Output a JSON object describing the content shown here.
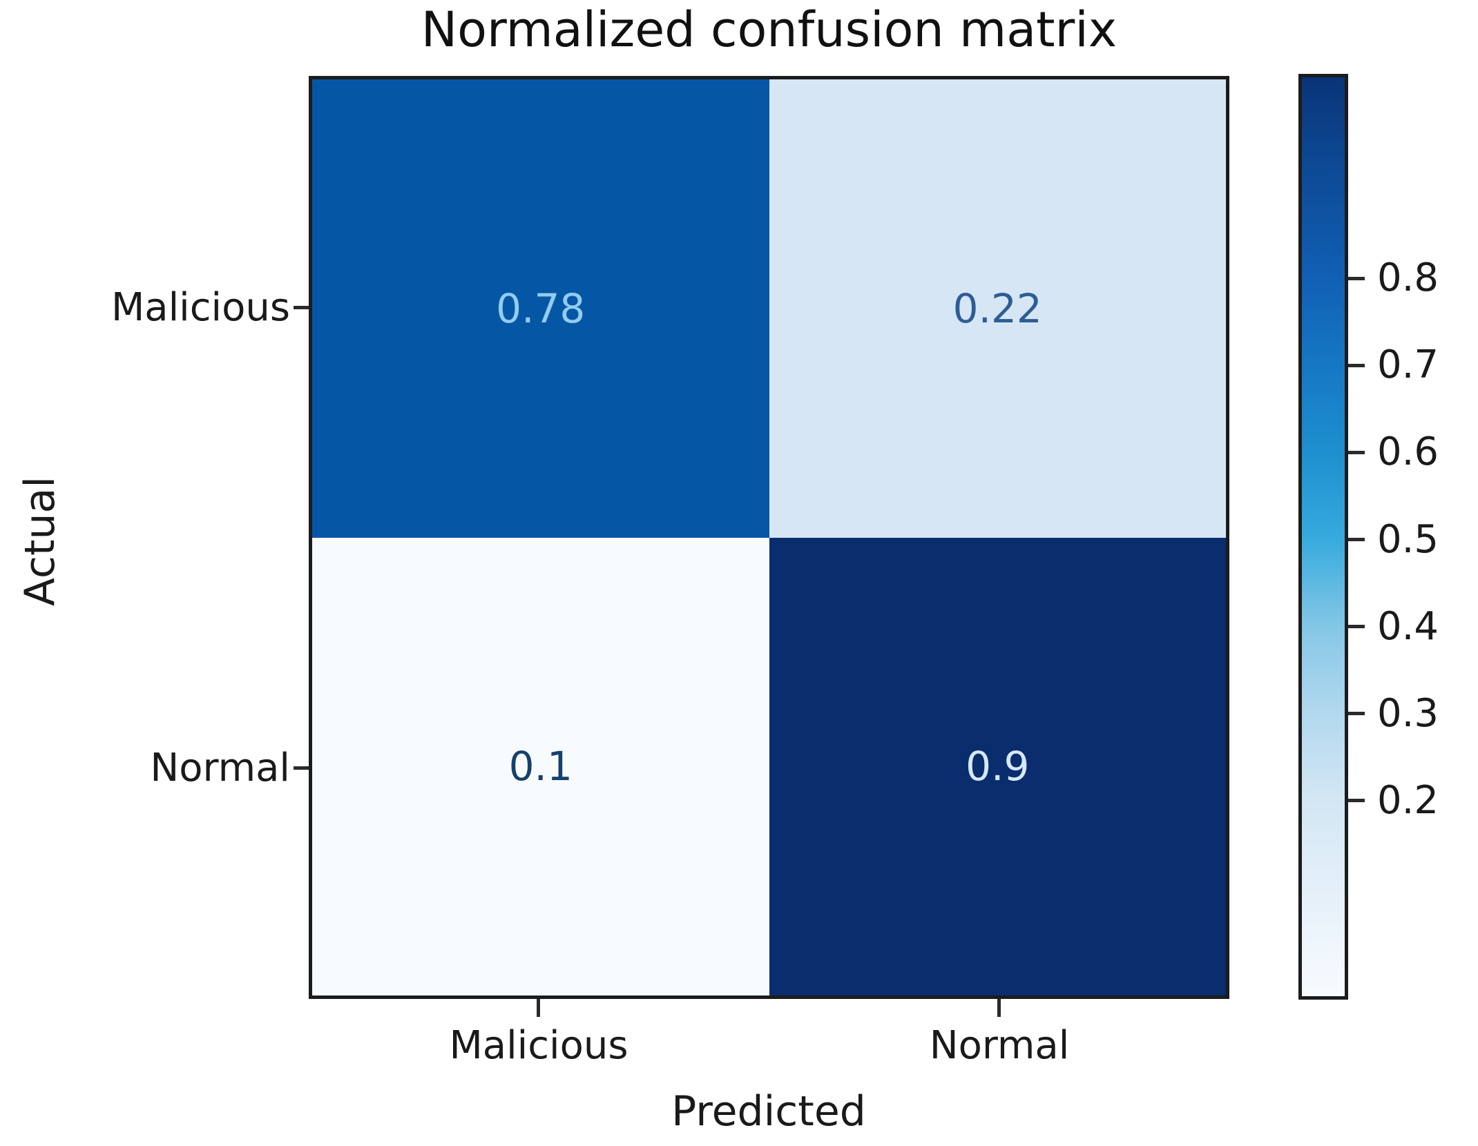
{
  "figure": {
    "background": "#ffffff"
  },
  "chart_data": {
    "type": "heatmap",
    "title": "Normalized confusion matrix",
    "xlabel": "Predicted",
    "ylabel": "Actual",
    "x_tick_labels": [
      "Malicious",
      "Normal"
    ],
    "y_tick_labels": [
      "Malicious",
      "Normal"
    ],
    "matrix": [
      [
        0.78,
        0.22
      ],
      [
        0.1,
        0.9
      ]
    ],
    "colormap": "Blues",
    "value_range": [
      0.1,
      0.9
    ],
    "grid": false,
    "cells": [
      {
        "row": "Malicious",
        "col": "Malicious",
        "value": 0.78,
        "label": "0.78",
        "bg": "#0557a6",
        "fg": "#93cdee"
      },
      {
        "row": "Malicious",
        "col": "Normal",
        "value": 0.22,
        "label": "0.22",
        "bg": "#d7e6f4",
        "fg": "#2d5d94"
      },
      {
        "row": "Normal",
        "col": "Malicious",
        "value": 0.1,
        "label": "0.1",
        "bg": "#f8fbfe",
        "fg": "#16406e"
      },
      {
        "row": "Normal",
        "col": "Normal",
        "value": 0.9,
        "label": "0.9",
        "bg": "#0a2d6d",
        "fg": "#d6e8f8"
      }
    ],
    "colorbar": {
      "position": "right",
      "ticks": [
        {
          "label": "0.8",
          "pos_pct": 22.1
        },
        {
          "label": "0.7",
          "pos_pct": 31.5
        },
        {
          "label": "0.6",
          "pos_pct": 40.9
        },
        {
          "label": "0.5",
          "pos_pct": 50.3
        },
        {
          "label": "0.4",
          "pos_pct": 59.7
        },
        {
          "label": "0.3",
          "pos_pct": 69.1
        },
        {
          "label": "0.2",
          "pos_pct": 78.5
        }
      ],
      "gradient_top_to_bottom": [
        {
          "color": "#0a3478",
          "pct": 0
        },
        {
          "color": "#0d4a95",
          "pct": 10
        },
        {
          "color": "#1160b5",
          "pct": 22
        },
        {
          "color": "#1678c4",
          "pct": 31.5
        },
        {
          "color": "#1e90cf",
          "pct": 41
        },
        {
          "color": "#35aadd",
          "pct": 50
        },
        {
          "color": "#85c7e6",
          "pct": 60
        },
        {
          "color": "#b1d8ee",
          "pct": 69
        },
        {
          "color": "#d3e6f4",
          "pct": 78.5
        },
        {
          "color": "#f8fbff",
          "pct": 100
        }
      ]
    }
  }
}
